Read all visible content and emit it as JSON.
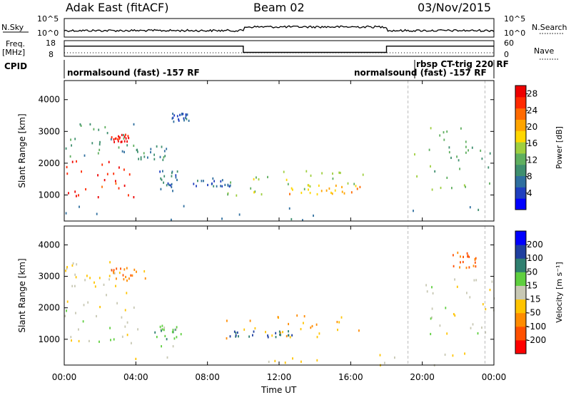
{
  "header": {
    "station": "Adak East (fitACF)",
    "beam": "Beam 02",
    "date": "03/Nov/2015"
  },
  "top_panels": {
    "nsky_label": "N.Sky",
    "nsky_ticks": [
      "10^5",
      "10^0"
    ],
    "nsearch_label": "N.Search",
    "nsearch_ticks": [
      "10^5",
      "10^0"
    ],
    "freq_label": "Freq.",
    "freq_unit": "[MHz]",
    "freq_ticks": [
      "18",
      "8"
    ],
    "nave_label": "Nave",
    "nave_ticks": [
      "60",
      "0"
    ],
    "cpid_label": "CPID",
    "cpid_texts": [
      "normalsound (fast) -157 RF",
      "rbsp CT-trig 220 RF",
      "normalsound (fast) -157 RF"
    ]
  },
  "chart_data": [
    {
      "type": "heatmap",
      "title": "",
      "ylabel": "Slant Range [km]",
      "xlabel": "",
      "x_unit": "hours UT",
      "xlim": [
        0,
        24
      ],
      "ylim": [
        180,
        4600
      ],
      "yticks": [
        "4000",
        "3000",
        "2000",
        "1000"
      ],
      "ytick_values": [
        4000,
        3000,
        2000,
        1000
      ],
      "colorbar": {
        "label": "Power [dB]",
        "ticks": [
          "28",
          "24",
          "20",
          "16",
          "12",
          "8",
          "4"
        ],
        "tick_values": [
          28,
          24,
          20,
          16,
          12,
          8,
          4
        ],
        "range": [
          0,
          30
        ],
        "colors": [
          "#0000ff",
          "#1f3fbf",
          "#2f6f9f",
          "#3f8f6f",
          "#5faf5f",
          "#9fcf3f",
          "#ffd700",
          "#ffa500",
          "#ff6a00",
          "#ff2a00",
          "#ee0000"
        ]
      },
      "regions": [
        {
          "t0": 0.0,
          "t1": 4.2,
          "r0": 900,
          "r1": 2100,
          "value": 27
        },
        {
          "t0": 0.0,
          "t1": 4.0,
          "r0": 2200,
          "r1": 3300,
          "value": 10
        },
        {
          "t0": 2.6,
          "t1": 3.6,
          "r0": 2700,
          "r1": 2950,
          "value": 28
        },
        {
          "t0": 3.8,
          "t1": 5.8,
          "r0": 2050,
          "r1": 2650,
          "value": 9
        },
        {
          "t0": 5.3,
          "t1": 6.3,
          "r0": 1000,
          "r1": 1800,
          "value": 7
        },
        {
          "t0": 6.0,
          "t1": 7.0,
          "r0": 3300,
          "r1": 3600,
          "value": 6
        },
        {
          "t0": 7.0,
          "t1": 9.5,
          "r0": 1300,
          "r1": 1600,
          "value": 6
        },
        {
          "t0": 9.0,
          "t1": 17.0,
          "r0": 1000,
          "r1": 1800,
          "value": 15
        },
        {
          "t0": 12.5,
          "t1": 16.5,
          "r0": 1050,
          "r1": 1350,
          "value": 20
        },
        {
          "t0": 19.5,
          "t1": 24.0,
          "r0": 1200,
          "r1": 3200,
          "value": 12
        },
        {
          "t0": 0.0,
          "t1": 24.0,
          "r0": 200,
          "r1": 700,
          "value": 8
        }
      ]
    },
    {
      "type": "heatmap",
      "title": "",
      "ylabel": "Slant Range [km]",
      "xlabel": "Time UT",
      "x_unit": "hours UT",
      "xlim": [
        0,
        24
      ],
      "xticks": [
        "00:00",
        "04:00",
        "08:00",
        "12:00",
        "16:00",
        "20:00",
        "00:00"
      ],
      "xtick_values": [
        0,
        4,
        8,
        12,
        16,
        20,
        24
      ],
      "ylim": [
        180,
        4600
      ],
      "yticks": [
        "4000",
        "3000",
        "2000",
        "1000"
      ],
      "ytick_values": [
        4000,
        3000,
        2000,
        1000
      ],
      "colorbar": {
        "label": "Velocity [m s⁻¹]",
        "ticks": [
          "200",
          "100",
          "50",
          "15",
          "-15",
          "-50",
          "-100",
          "-200"
        ],
        "tick_values": [
          200,
          100,
          50,
          15,
          -15,
          -50,
          -100,
          -200
        ],
        "range": [
          -250,
          250
        ],
        "colors": [
          "#ff0000",
          "#ff5000",
          "#ff8c00",
          "#ffc400",
          "#c8c8b4",
          "#5fcf3f",
          "#2f7f6f",
          "#1f3f9f",
          "#0000ff"
        ]
      },
      "regions": [
        {
          "t0": 0.0,
          "t1": 4.2,
          "r0": 900,
          "r1": 2600,
          "value": 0
        },
        {
          "t0": 0.0,
          "t1": 3.0,
          "r0": 2700,
          "r1": 3500,
          "value": -30
        },
        {
          "t0": 2.5,
          "t1": 4.5,
          "r0": 2900,
          "r1": 3300,
          "value": -120
        },
        {
          "t0": 5.0,
          "t1": 6.5,
          "r0": 800,
          "r1": 1500,
          "value": 60
        },
        {
          "t0": 9.0,
          "t1": 16.8,
          "r0": 1050,
          "r1": 1800,
          "value": -80
        },
        {
          "t0": 9.0,
          "t1": 13.0,
          "r0": 1100,
          "r1": 1300,
          "value": 150
        },
        {
          "t0": 20.0,
          "t1": 24.0,
          "r0": 1200,
          "r1": 3000,
          "value": 0
        },
        {
          "t0": 21.5,
          "t1": 23.0,
          "r0": 3300,
          "r1": 3800,
          "value": -150
        },
        {
          "t0": 0.0,
          "t1": 24.0,
          "r0": 200,
          "r1": 600,
          "value": -20
        }
      ]
    }
  ],
  "search_noise": [
    {
      "t0": 0,
      "t1": 10,
      "level": 0.35
    },
    {
      "t0": 10,
      "t1": 18,
      "level": 0.55
    },
    {
      "t0": 18,
      "t1": 24,
      "level": 0.35
    }
  ],
  "frequency": [
    {
      "t0": 0,
      "t1": 10,
      "mhz": 14.5
    },
    {
      "t0": 10,
      "t1": 18,
      "mhz": 10.5
    },
    {
      "t0": 18,
      "t1": 24,
      "mhz": 14.5
    }
  ],
  "dashed_markers_hours": [
    19.2,
    23.5
  ]
}
